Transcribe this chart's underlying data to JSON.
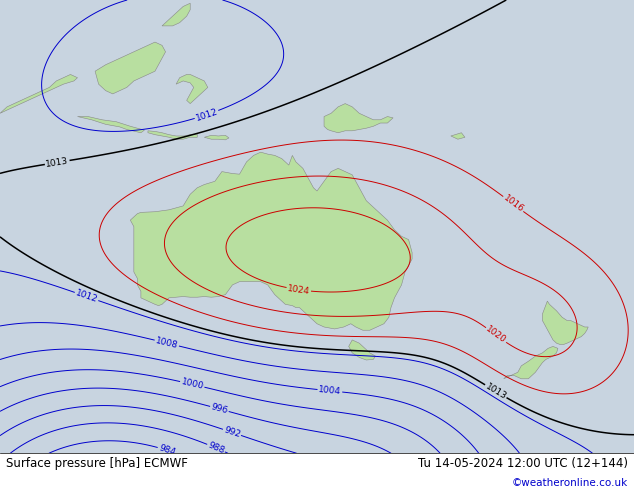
{
  "title_left": "Surface pressure [hPa] ECMWF",
  "title_right": "Tu 14-05-2024 12:00 UTC (12+144)",
  "copyright": "©weatheronline.co.uk",
  "background_color": "#c8d4e0",
  "land_color": "#b8dfa0",
  "land_edge_color": "#888888",
  "fig_width": 6.34,
  "fig_height": 4.9,
  "dpi": 100,
  "font_size_title": 8.5,
  "font_size_copy": 7.5,
  "red_color": "#cc0000",
  "blue_color": "#0000cc",
  "black_color": "#000000",
  "label_fontsize": 6.5,
  "lon_min": 95,
  "lon_max": 185,
  "lat_min": -58,
  "lat_max": 12
}
